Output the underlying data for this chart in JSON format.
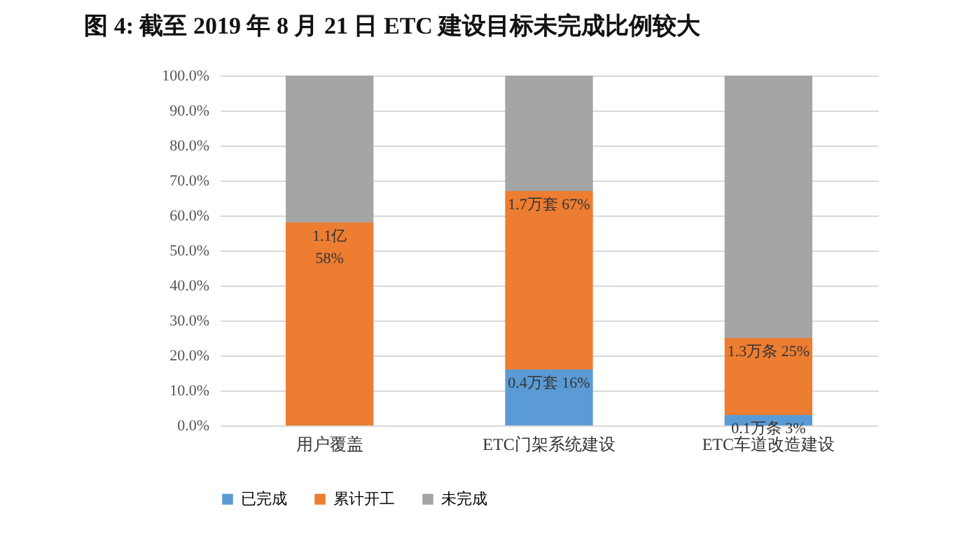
{
  "chart_data": {
    "type": "bar",
    "title": "图 4: 截至 2019 年 8 月 21 日 ETC 建设目标未完成比例较大",
    "categories": [
      "用户覆盖",
      "ETC门架系统建设",
      "ETC车道改造建设"
    ],
    "stacked": true,
    "series": [
      {
        "name": "已完成",
        "color": "#5b9bd5",
        "values": [
          0,
          16,
          3
        ]
      },
      {
        "name": "累计开工",
        "color": "#ed7d31",
        "values": [
          58,
          51,
          22
        ]
      },
      {
        "name": "未完成",
        "color": "#a5a5a5",
        "values": [
          42,
          33,
          75
        ]
      }
    ],
    "annotations": [
      {
        "text": "1.1亿\n58%",
        "x": "用户覆盖",
        "y": 58
      },
      {
        "text": "1.7万套 67%",
        "x": "ETC门架系统建设",
        "y": 67
      },
      {
        "text": "0.4万套 16%",
        "x": "ETC门架系统建设",
        "y": 16
      },
      {
        "text": "1.3万条 25%",
        "x": "ETC车道改造建设",
        "y": 25
      },
      {
        "text": "0.1万条 3%",
        "x": "ETC车道改造建设",
        "y": 3
      }
    ],
    "ylim": [
      0,
      100
    ],
    "yticks": [
      {
        "value": 0,
        "label": "0.0%"
      },
      {
        "value": 10,
        "label": "10.0%"
      },
      {
        "value": 20,
        "label": "20.0%"
      },
      {
        "value": 30,
        "label": "30.0%"
      },
      {
        "value": 40,
        "label": "40.0%"
      },
      {
        "value": 50,
        "label": "50.0%"
      },
      {
        "value": 60,
        "label": "60.0%"
      },
      {
        "value": 70,
        "label": "70.0%"
      },
      {
        "value": 80,
        "label": "80.0%"
      },
      {
        "value": 90,
        "label": "90.0%"
      },
      {
        "value": 100,
        "label": "100.0%"
      }
    ],
    "grid": "y",
    "legend": "bottom"
  }
}
